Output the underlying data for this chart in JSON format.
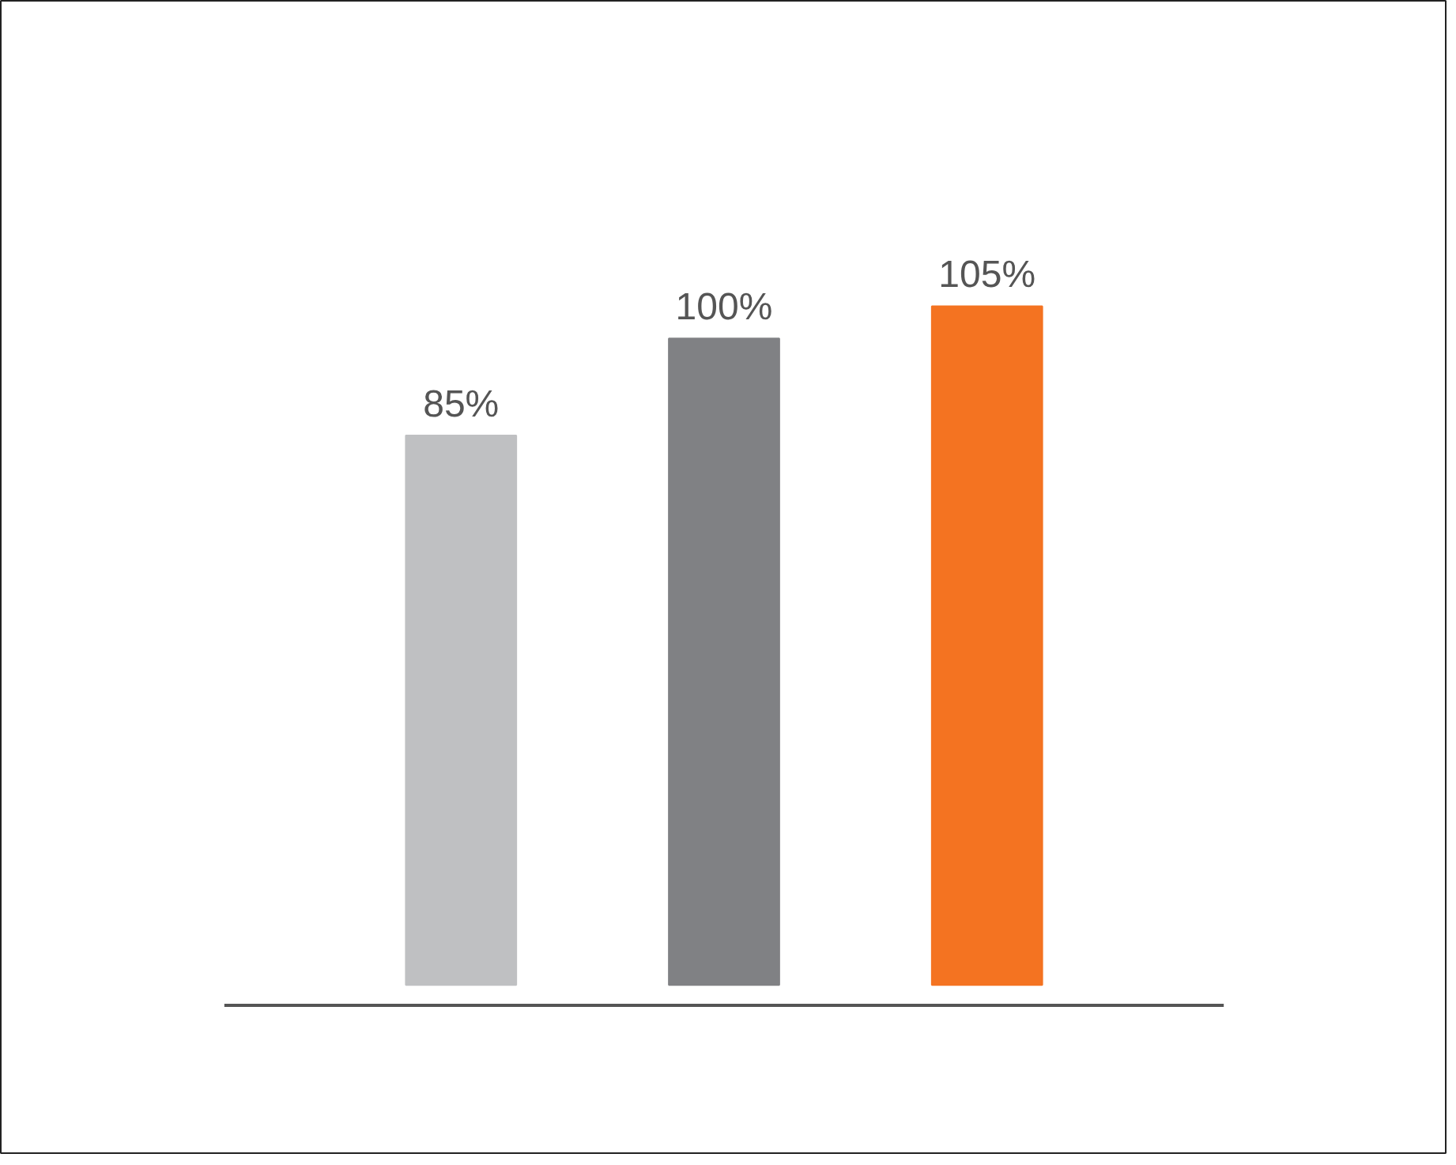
{
  "chart_data": {
    "type": "bar",
    "categories": [
      null,
      null,
      null
    ],
    "values": [
      85,
      100,
      105
    ],
    "colors": [
      "#bfc0c2",
      "#808184",
      "#f47321"
    ],
    "value_labels": [
      "85%",
      "100%",
      "105%"
    ]
  }
}
